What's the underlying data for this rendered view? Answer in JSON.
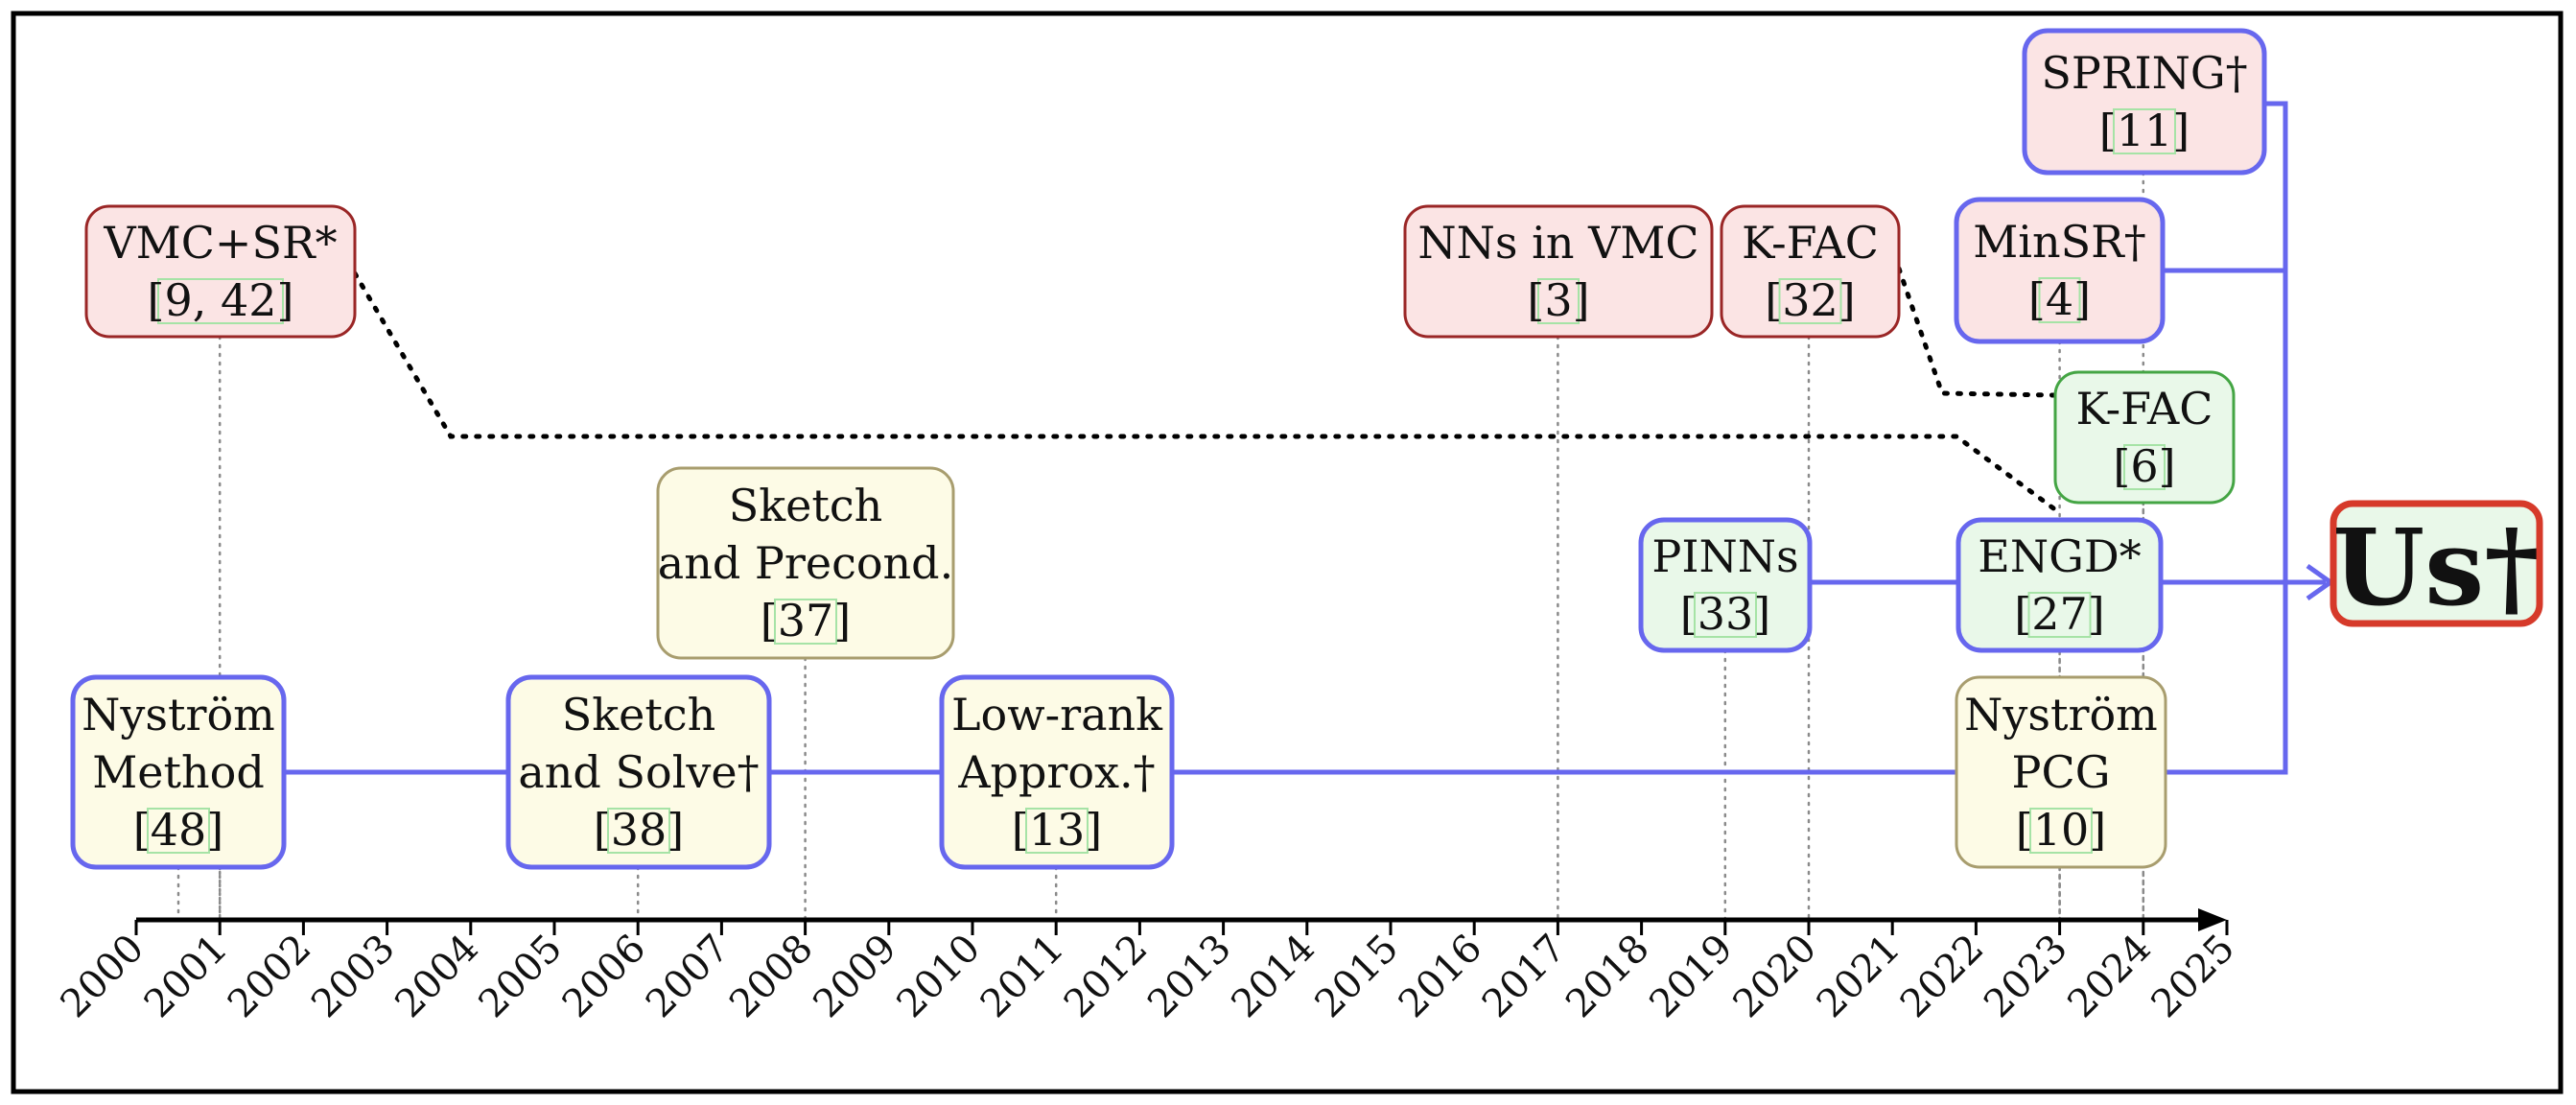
{
  "timeline": {
    "years": [
      "2000",
      "2001",
      "2002",
      "2003",
      "2004",
      "2005",
      "2006",
      "2007",
      "2008",
      "2009",
      "2010",
      "2011",
      "2012",
      "2013",
      "2014",
      "2015",
      "2016",
      "2017",
      "2018",
      "2019",
      "2020",
      "2021",
      "2022",
      "2023",
      "2024",
      "2025"
    ]
  },
  "colors": {
    "frame": "#000000",
    "blue_line": "#6767ee",
    "red_fill": "#fbe4e4",
    "red_border": "#9a2626",
    "green_fill": "#e9f8e9",
    "green_border": "#44a544",
    "yellow_fill": "#fdfbe6",
    "yellow_border": "#a89d6e",
    "cite_box": "#a6e3a6",
    "us_border": "#d63a2a"
  },
  "boxes": [
    {
      "id": "vmc-sr",
      "lines": [
        "VMC+SR*",
        "[9, 42]"
      ],
      "year": 2001,
      "fill": "red",
      "border": "red"
    },
    {
      "id": "nns-vmc",
      "lines": [
        "NNs in VMC",
        "[3]"
      ],
      "year": 2017,
      "fill": "red",
      "border": "red"
    },
    {
      "id": "kfac-2020",
      "lines": [
        "K-FAC",
        "[32]"
      ],
      "year": 2020,
      "fill": "red",
      "border": "red"
    },
    {
      "id": "spring",
      "lines": [
        "SPRING†",
        "[11]"
      ],
      "year": 2024,
      "fill": "red",
      "border": "blue"
    },
    {
      "id": "minsr",
      "lines": [
        "MinSR†",
        "[4]"
      ],
      "year": 2023,
      "fill": "red",
      "border": "blue"
    },
    {
      "id": "kfac-2024",
      "lines": [
        "K-FAC",
        "[6]"
      ],
      "year": 2024,
      "fill": "green",
      "border": "green"
    },
    {
      "id": "sketch-precond",
      "lines": [
        "Sketch",
        "and Precond.",
        "[37]"
      ],
      "year": 2008,
      "fill": "yellow",
      "border": "yellow"
    },
    {
      "id": "pinns",
      "lines": [
        "PINNs",
        "[33]"
      ],
      "year": 2019,
      "fill": "green",
      "border": "blue"
    },
    {
      "id": "engd",
      "lines": [
        "ENGD*",
        "[27]"
      ],
      "year": 2023,
      "fill": "green",
      "border": "blue"
    },
    {
      "id": "nystrom-method",
      "lines": [
        "Nyström",
        "Method",
        "[48]"
      ],
      "year": 2001,
      "fill": "yellow",
      "border": "blue"
    },
    {
      "id": "sketch-solve",
      "lines": [
        "Sketch",
        "and Solve†",
        "[38]"
      ],
      "year": 2006,
      "fill": "yellow",
      "border": "blue"
    },
    {
      "id": "lowrank",
      "lines": [
        "Low-rank",
        "Approx.†",
        "[13]"
      ],
      "year": 2011,
      "fill": "yellow",
      "border": "blue"
    },
    {
      "id": "nystrom-pcg",
      "lines": [
        "Nyström",
        "PCG",
        "[10]"
      ],
      "year": 2023,
      "fill": "yellow",
      "border": "yellow"
    }
  ],
  "result": {
    "label": "Us†"
  }
}
